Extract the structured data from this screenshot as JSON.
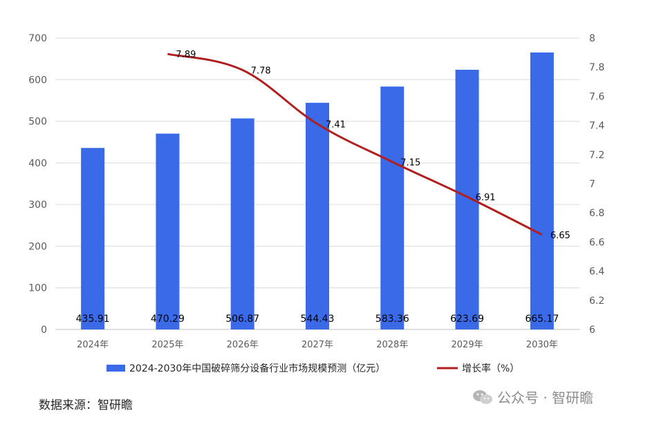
{
  "chart_data": {
    "type": "bar+line",
    "categories": [
      "2024年",
      "2025年",
      "2026年",
      "2027年",
      "2028年",
      "2029年",
      "2030年"
    ],
    "series": [
      {
        "name": "2024-2030年中国破碎筛分设备行业市场规模预测（亿元）",
        "type": "bar",
        "axis": "left",
        "values": [
          435.91,
          470.29,
          506.87,
          544.43,
          583.36,
          623.69,
          665.17
        ],
        "value_labels": [
          "435.91",
          "470.29",
          "506.87",
          "544.43",
          "583.36",
          "623.69",
          "665.17"
        ],
        "color": "#3A6AE8"
      },
      {
        "name": "增长率（%）",
        "type": "line",
        "axis": "right",
        "values": [
          null,
          7.89,
          7.78,
          7.41,
          7.15,
          6.91,
          6.65
        ],
        "value_labels": [
          "",
          "7.89",
          "7.78",
          "7.41",
          "7.15",
          "6.91",
          "6.65"
        ],
        "color": "#B01E1E"
      }
    ],
    "y_left": {
      "range": [
        0,
        700
      ],
      "ticks": [
        "0",
        "100",
        "200",
        "300",
        "400",
        "500",
        "600",
        "700"
      ]
    },
    "y_right": {
      "range": [
        6,
        8
      ],
      "ticks": [
        "6",
        "6.2",
        "6.4",
        "6.6",
        "6.8",
        "7",
        "7.2",
        "7.4",
        "7.6",
        "7.8",
        "8"
      ]
    },
    "grid": true,
    "legend_position": "bottom"
  },
  "source_text": "数据来源：智研瞻",
  "watermark_text": "公众号 · 智研瞻"
}
